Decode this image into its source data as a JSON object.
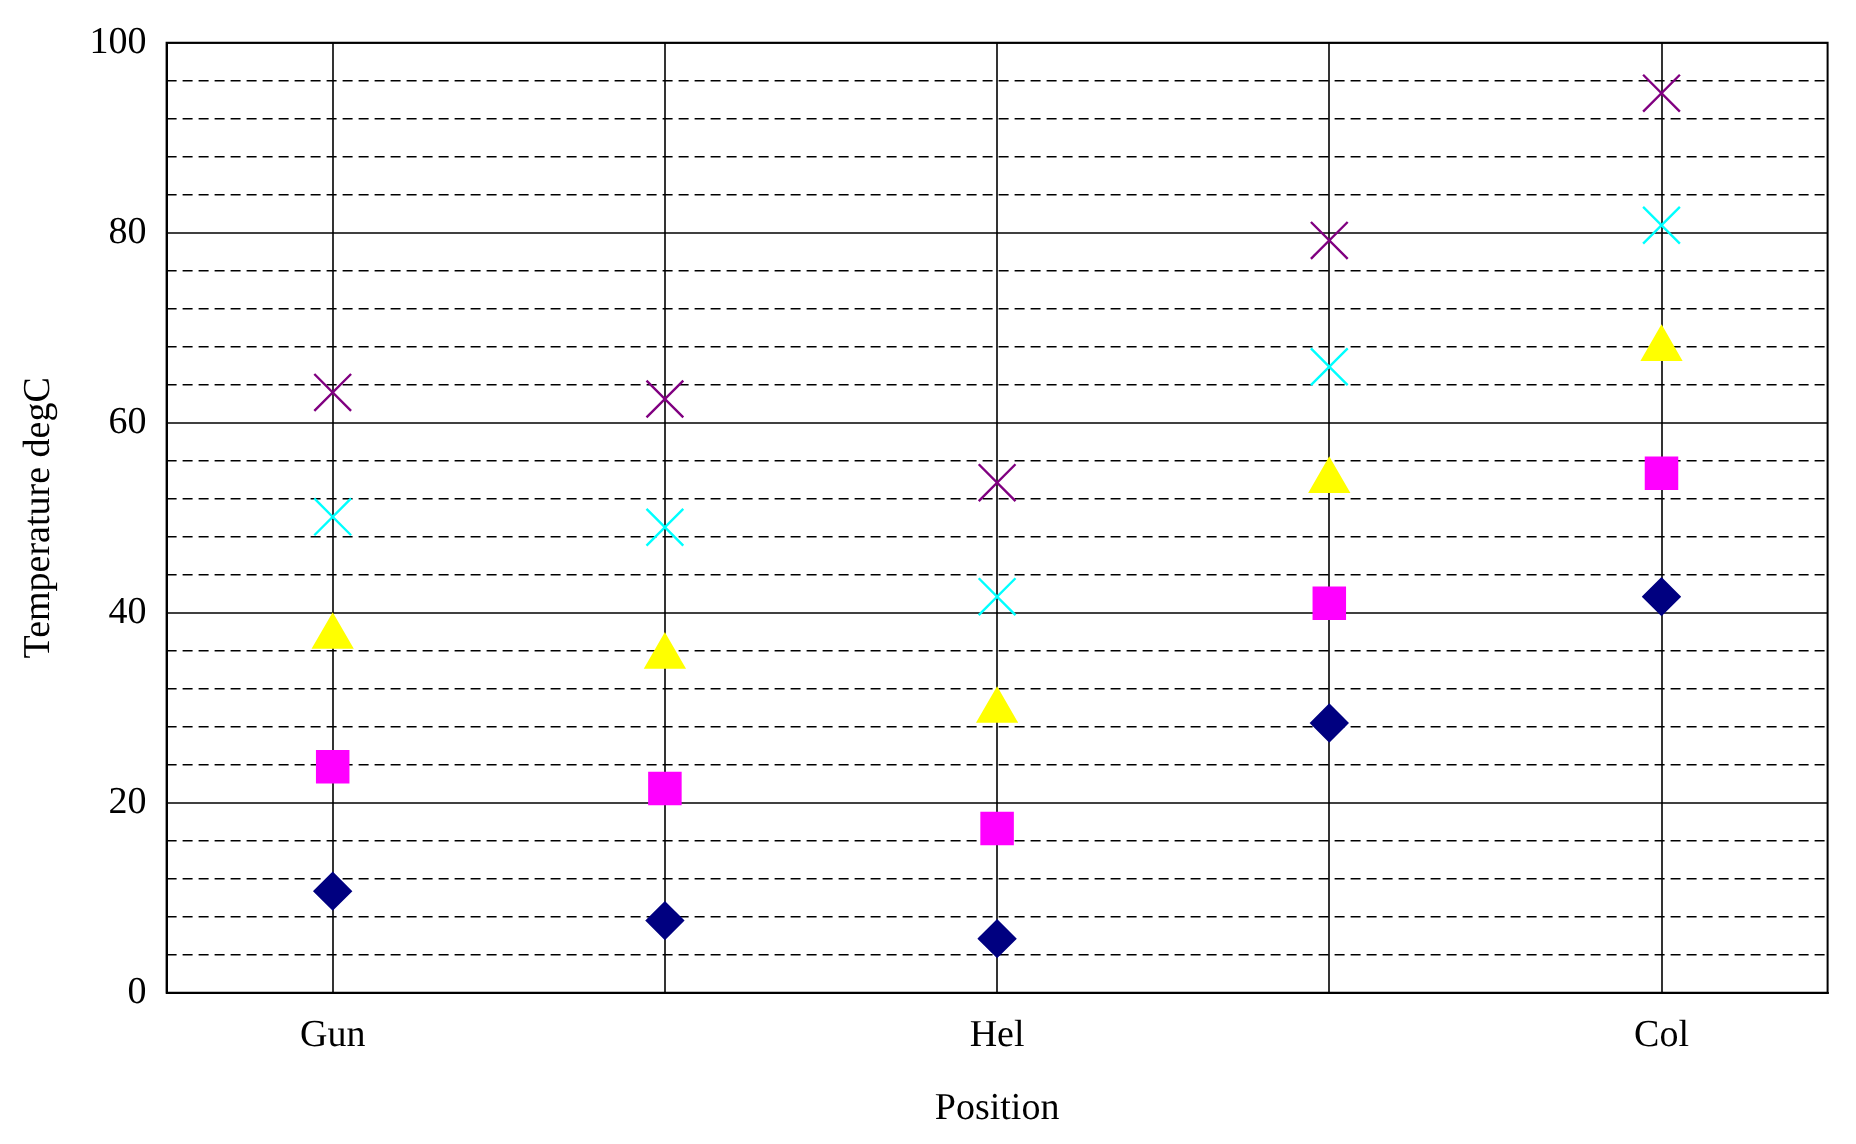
{
  "chart_data": {
    "type": "scatter",
    "xlabel": "Position",
    "ylabel": "Temperature degC",
    "categories": [
      "Gun",
      null,
      "Hel",
      null,
      "Col"
    ],
    "ylim": [
      0,
      100
    ],
    "yticks": [
      0,
      {
        "value": 4,
        "label": null
      },
      {
        "value": 8,
        "label": null
      },
      {
        "value": 12,
        "label": null
      },
      {
        "value": 16,
        "label": null
      },
      20,
      {
        "value": 24,
        "label": null
      },
      {
        "value": 28,
        "label": null
      },
      {
        "value": 32,
        "label": null
      },
      {
        "value": 36,
        "label": null
      },
      40,
      {
        "value": 44,
        "label": null
      },
      {
        "value": 48,
        "label": null
      },
      {
        "value": 52,
        "label": null
      },
      {
        "value": 56,
        "label": null
      },
      60,
      {
        "value": 64,
        "label": null
      },
      {
        "value": 68,
        "label": null
      },
      {
        "value": 72,
        "label": null
      },
      {
        "value": 76,
        "label": null
      },
      80,
      {
        "value": 84,
        "label": null
      },
      {
        "value": 88,
        "label": null
      },
      {
        "value": 92,
        "label": null
      },
      {
        "value": 96,
        "label": null
      },
      100
    ],
    "grid": true,
    "legend": false,
    "series": [
      {
        "color": "#000080",
        "marker": "diamond",
        "values": [
          10.7,
          7.6,
          5.7,
          28.4,
          41.7
        ]
      },
      {
        "color": "#ff00ff",
        "marker": "square",
        "values": [
          23.8,
          21.5,
          17.3,
          41,
          54.7
        ]
      },
      {
        "color": "#ffff00",
        "marker": "triangle",
        "values": [
          37.5,
          35.4,
          29.7,
          53.9,
          67.8
        ]
      },
      {
        "color": "#00ffff",
        "marker": "cross",
        "values": [
          50.1,
          49,
          41.7,
          65.9,
          80.8
        ]
      },
      {
        "color": "#800080",
        "marker": "cross",
        "values": [
          63.2,
          62.5,
          53.7,
          79.2,
          94.7
        ]
      }
    ]
  }
}
